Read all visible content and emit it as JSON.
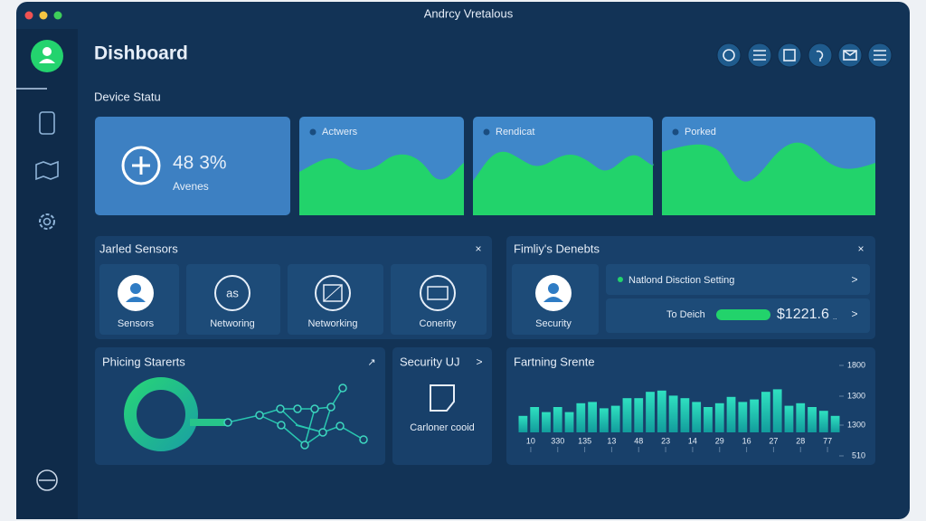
{
  "window_title": "Andrcy Vretalous",
  "header": {
    "title": "Dishboard"
  },
  "device_status": {
    "title": "Device Statu",
    "summary": {
      "value": "48 3%",
      "label": "Avenes"
    },
    "cards": [
      "Actwers",
      "Rendicat",
      "Porked"
    ]
  },
  "sensors_panel": {
    "title": "Jarled Sensors",
    "close": "×",
    "tiles": [
      "Sensors",
      "Networing",
      "Networking",
      "Conerity"
    ]
  },
  "family_panel": {
    "title": "Fimliy's Denebts",
    "close": "×",
    "tile": "Security",
    "row1": {
      "text": "Natlond Disction Setting",
      "arrow": ">"
    },
    "row2": {
      "label": "To Deich",
      "amount": "$1221.6",
      "suffix": "..",
      "arrow": ">"
    }
  },
  "pricing_panel": {
    "title": "Phicing Starerts",
    "icon": "↗"
  },
  "security_panel": {
    "title": "Security UJ",
    "arrow": ">",
    "label": "Carloner cooid"
  },
  "bar_panel": {
    "title": "Fartning Srente",
    "ylim": [
      0,
      100
    ],
    "ytick_labels": [
      "1800",
      "1300",
      "1300",
      "510"
    ],
    "xlabels": [
      "10",
      "330",
      "135",
      "13",
      "48",
      "23",
      "14",
      "29",
      "16",
      "27",
      "28",
      "77"
    ],
    "values": [
      26,
      40,
      32,
      40,
      32,
      46,
      48,
      38,
      42,
      54,
      54,
      64,
      66,
      58,
      54,
      48,
      40,
      46,
      56,
      48,
      52,
      64,
      68,
      42,
      46,
      40,
      34,
      26
    ]
  }
}
